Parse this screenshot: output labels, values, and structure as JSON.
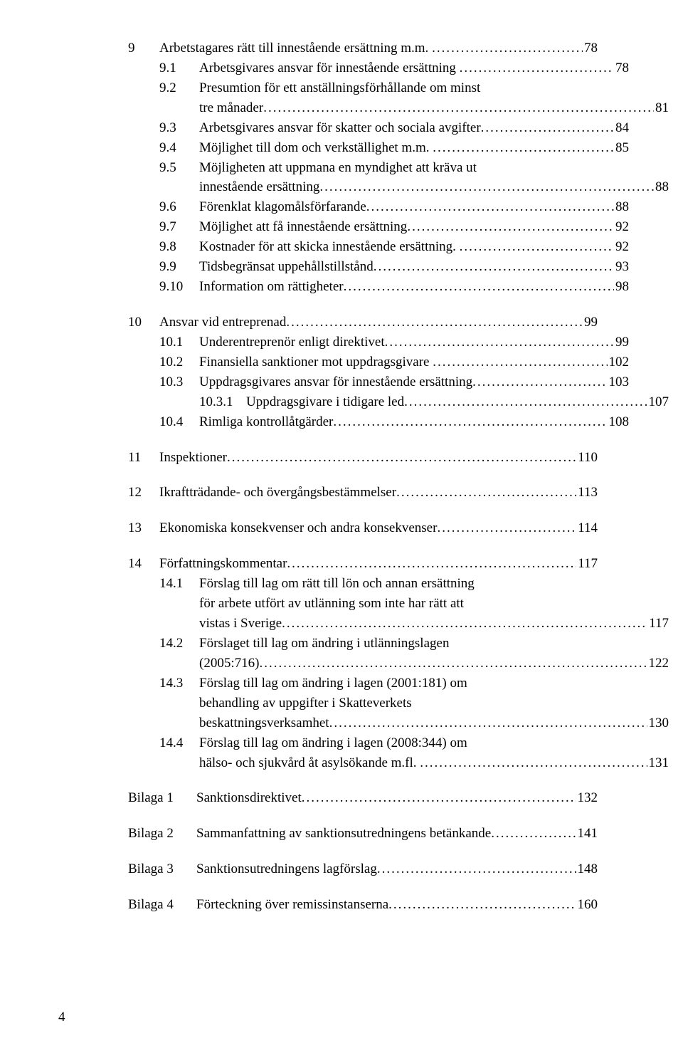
{
  "colors": {
    "background": "#ffffff",
    "text": "#000000"
  },
  "typography": {
    "font_family": "Times New Roman",
    "base_size_pt": 14,
    "line_height": 1.47
  },
  "page_number": "4",
  "toc": [
    {
      "type": "group",
      "items": [
        {
          "level": 0,
          "num": "9",
          "text": "Arbetstagares rätt till innestående ersättning m.m. ",
          "page": "78"
        },
        {
          "level": 1,
          "num": "9.1",
          "text": "Arbetsgivares ansvar för innestående ersättning ",
          "page": "78"
        },
        {
          "level": 1,
          "num": "9.2",
          "text": "Presumtion för ett anställningsförhållande om minst",
          "wrap": "tre månader",
          "page": "81"
        },
        {
          "level": 1,
          "num": "9.3",
          "text": "Arbetsgivares ansvar för skatter och sociala avgifter",
          "page": "84"
        },
        {
          "level": 1,
          "num": "9.4",
          "text": "Möjlighet till dom och verkställighet m.m. ",
          "page": "85"
        },
        {
          "level": 1,
          "num": "9.5",
          "text": "Möjligheten att uppmana en myndighet att kräva ut",
          "wrap": "innestående ersättning",
          "page": "88"
        },
        {
          "level": 1,
          "num": "9.6",
          "text": "Förenklat klagomålsförfarande",
          "page": "88"
        },
        {
          "level": 1,
          "num": "9.7",
          "text": "Möjlighet att få innestående ersättning",
          "page": "92"
        },
        {
          "level": 1,
          "num": "9.8",
          "text": "Kostnader för att skicka innestående ersättning. ",
          "page": "92"
        },
        {
          "level": 1,
          "num": "9.9",
          "text": "Tidsbegränsat uppehållstillstånd",
          "page": "93"
        },
        {
          "level": 1,
          "num": "9.10",
          "text": "Information om rättigheter",
          "page": "98"
        }
      ]
    },
    {
      "type": "group",
      "items": [
        {
          "level": 0,
          "num": "10",
          "text": "Ansvar vid entreprenad",
          "page": "99"
        },
        {
          "level": 1,
          "num": "10.1",
          "text": "Underentreprenör enligt direktivet",
          "page": "99"
        },
        {
          "level": 1,
          "num": "10.2",
          "text": "Finansiella sanktioner mot uppdragsgivare ",
          "page": "102"
        },
        {
          "level": 1,
          "num": "10.3",
          "text": "Uppdragsgivares ansvar för innestående ersättning",
          "page": "103"
        },
        {
          "level": 2,
          "num": "10.3.1",
          "text": "Uppdragsgivare i tidigare led",
          "page": "107"
        },
        {
          "level": 1,
          "num": "10.4",
          "text": "Rimliga kontrollåtgärder",
          "page": "108"
        }
      ]
    },
    {
      "type": "group",
      "items": [
        {
          "level": 0,
          "num": "11",
          "text": "Inspektioner",
          "page": "110"
        }
      ]
    },
    {
      "type": "group",
      "items": [
        {
          "level": 0,
          "num": "12",
          "text": "Ikraftträdande- och övergångsbestämmelser",
          "page": "113"
        }
      ]
    },
    {
      "type": "group",
      "items": [
        {
          "level": 0,
          "num": "13",
          "text": "Ekonomiska konsekvenser och andra konsekvenser",
          "page": "114"
        }
      ]
    },
    {
      "type": "group",
      "items": [
        {
          "level": 0,
          "num": "14",
          "text": "Författningskommentar",
          "page": "117"
        },
        {
          "level": 1,
          "num": "14.1",
          "text": "Förslag till lag om rätt till lön och annan ersättning",
          "wrap": "för arbete utfört av utlänning som inte har rätt att",
          "wrap2": "vistas i Sverige",
          "page": "117"
        },
        {
          "level": 1,
          "num": "14.2",
          "text": "Förslaget till lag om ändring i utlänningslagen",
          "wrap": "(2005:716)",
          "page": "122"
        },
        {
          "level": 1,
          "num": "14.3",
          "text": "Förslag till lag om ändring i lagen (2001:181) om",
          "wrap": "behandling av uppgifter i Skatteverkets",
          "wrap2": "beskattningsverksamhet",
          "page": "130"
        },
        {
          "level": 1,
          "num": "14.4",
          "text": "Förslag till lag om ändring i lagen (2008:344) om",
          "wrap": "hälso- och sjukvård åt asylsökande m.fl. ",
          "page": "131"
        }
      ]
    },
    {
      "type": "group",
      "items": [
        {
          "level": "bilaga",
          "num": "Bilaga 1",
          "text": "Sanktionsdirektivet",
          "page": "132"
        }
      ]
    },
    {
      "type": "group",
      "items": [
        {
          "level": "bilaga",
          "num": "Bilaga 2",
          "text": "Sammanfattning av sanktionsutredningens betänkande",
          "page": "141"
        }
      ]
    },
    {
      "type": "group",
      "items": [
        {
          "level": "bilaga",
          "num": "Bilaga 3",
          "text": "Sanktionsutredningens lagförslag",
          "page": "148"
        }
      ]
    },
    {
      "type": "group",
      "items": [
        {
          "level": "bilaga",
          "num": "Bilaga 4",
          "text": "Förteckning över remissinstanserna",
          "page": "160"
        }
      ]
    }
  ]
}
